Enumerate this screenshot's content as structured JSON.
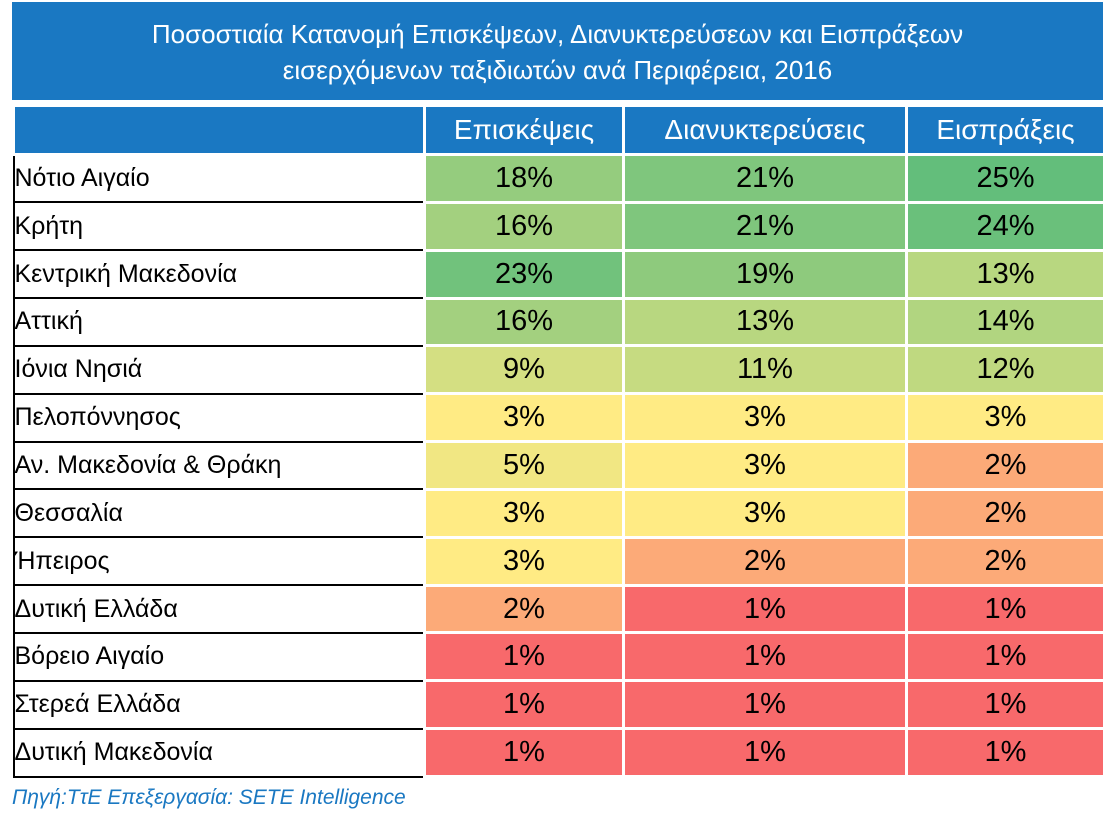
{
  "title": {
    "line1": "Ποσοστιαία Κατανομή Επισκέψεων, Διανυκτερεύσεων και Εισπράξεων",
    "line2": "εισερχόμενων ταξιδιωτών ανά Περιφέρεια, 2016"
  },
  "source_note": "Πηγή:ΤτΕ Επεξεργασία: SETE Intelligence",
  "colors": {
    "header_bg": "#1a78c2",
    "scale_low": "#f8696b",
    "scale_mid": "#ffeb84",
    "scale_high": "#63be7b"
  },
  "chart_data": {
    "type": "table",
    "title": "Ποσοστιαία Κατανομή Επισκέψεων, Διανυκτερεύσεων και Εισπράξεων εισερχόμενων ταξιδιωτών ανά Περιφέρεια, 2016",
    "columns": [
      "Επισκέψεις",
      "Διανυκτερεύσεις",
      "Εισπράξεις"
    ],
    "rows": [
      {
        "region": "Νότιο Αιγαίο",
        "values": [
          "18%",
          "21%",
          "25%"
        ]
      },
      {
        "region": "Κρήτη",
        "values": [
          "16%",
          "21%",
          "24%"
        ]
      },
      {
        "region": "Κεντρική Μακεδονία",
        "values": [
          "23%",
          "19%",
          "13%"
        ]
      },
      {
        "region": "Αττική",
        "values": [
          "16%",
          "13%",
          "14%"
        ]
      },
      {
        "region": "Ιόνια Νησιά",
        "values": [
          "9%",
          "11%",
          "12%"
        ]
      },
      {
        "region": "Πελοπόννησος",
        "values": [
          "3%",
          "3%",
          "3%"
        ]
      },
      {
        "region": "Αν. Μακεδονία & Θράκη",
        "values": [
          "5%",
          "3%",
          "2%"
        ]
      },
      {
        "region": "Θεσσαλία",
        "values": [
          "3%",
          "3%",
          "2%"
        ]
      },
      {
        "region": "Ήπειρος",
        "values": [
          "3%",
          "2%",
          "2%"
        ]
      },
      {
        "region": "Δυτική Ελλάδα",
        "values": [
          "2%",
          "1%",
          "1%"
        ]
      },
      {
        "region": "Βόρειο Αιγαίο",
        "values": [
          "1%",
          "1%",
          "1%"
        ]
      },
      {
        "region": "Στερεά Ελλάδα",
        "values": [
          "1%",
          "1%",
          "1%"
        ]
      },
      {
        "region": "Δυτική Μακεδονία",
        "values": [
          "1%",
          "1%",
          "1%"
        ]
      }
    ]
  }
}
